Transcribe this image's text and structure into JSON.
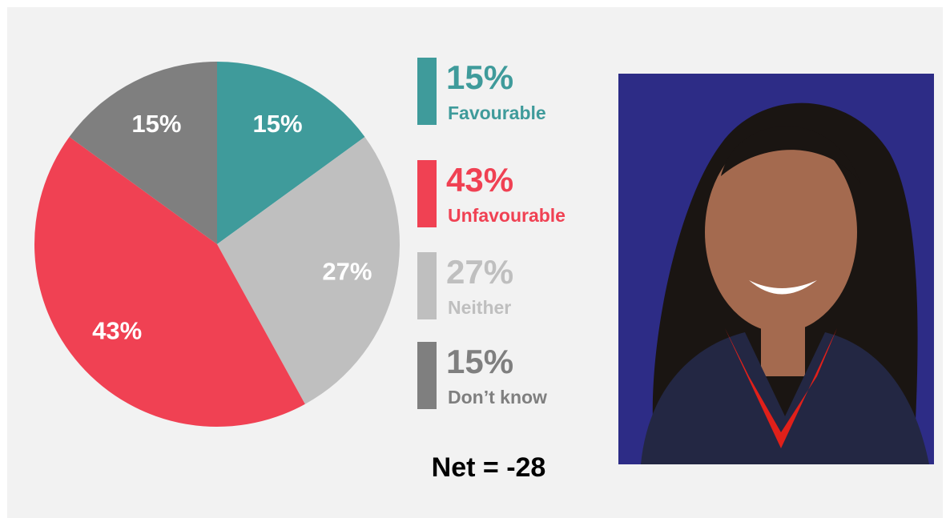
{
  "chart_data": {
    "type": "pie",
    "categories": [
      "Favourable",
      "Neither",
      "Unfavourable",
      "Don’t know"
    ],
    "values": [
      15,
      27,
      43,
      15
    ],
    "value_labels": [
      "15%",
      "27%",
      "43%",
      "15%"
    ],
    "colors": [
      "#3f9b9b",
      "#bfbfbf",
      "#f04153",
      "#7f7f7f"
    ],
    "annotation": "Net = -28"
  }
}
